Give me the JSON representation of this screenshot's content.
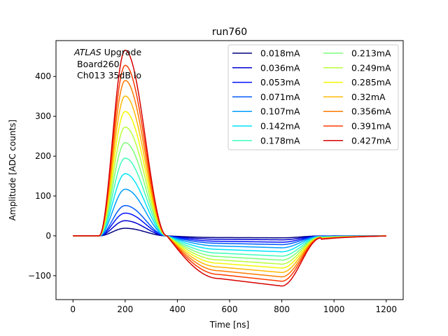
{
  "chart_data": {
    "type": "line",
    "title": "run760",
    "xlabel": "Time [ns]",
    "ylabel": "Amplitude [ADC counts]",
    "xlim": [
      -65,
      1265
    ],
    "ylim": [
      -160,
      490
    ],
    "xticks": [
      0,
      200,
      400,
      600,
      800,
      1000,
      1200
    ],
    "yticks": [
      -100,
      0,
      100,
      200,
      300,
      400
    ],
    "xtick_labels": [
      "0",
      "200",
      "400",
      "600",
      "800",
      "1000",
      "1200"
    ],
    "ytick_labels": [
      "−100",
      "0",
      "100",
      "200",
      "300",
      "400"
    ],
    "annotation": {
      "line1_italic": "ATLAS",
      "line1_rest": " Upgrade",
      "line2": "Board260",
      "line3": "Ch013 35dB lo"
    },
    "legend_placement": "top-right",
    "legend_columns": 2,
    "grid": false,
    "waveform": {
      "peak_time_ns": 200,
      "zero_cross_ns": 360,
      "undershoot_end_ns": 800,
      "end_ns": 1200
    },
    "series": [
      {
        "name": "0.018mA",
        "color": "#00007f",
        "peak": 19,
        "undershoot": -5
      },
      {
        "name": "0.036mA",
        "color": "#0000d0",
        "peak": 38,
        "undershoot": -10
      },
      {
        "name": "0.053mA",
        "color": "#0010ff",
        "peak": 57,
        "undershoot": -16
      },
      {
        "name": "0.071mA",
        "color": "#0058ff",
        "peak": 76,
        "undershoot": -22
      },
      {
        "name": "0.107mA",
        "color": "#009cff",
        "peak": 117,
        "undershoot": -30
      },
      {
        "name": "0.142mA",
        "color": "#00e4f8",
        "peak": 156,
        "undershoot": -40
      },
      {
        "name": "0.178mA",
        "color": "#3effb8",
        "peak": 195,
        "undershoot": -51
      },
      {
        "name": "0.213mA",
        "color": "#7cff79",
        "peak": 234,
        "undershoot": -61
      },
      {
        "name": "0.249mA",
        "color": "#b9ff3c",
        "peak": 273,
        "undershoot": -71
      },
      {
        "name": "0.285mA",
        "color": "#f4f802",
        "peak": 312,
        "undershoot": -81
      },
      {
        "name": "0.32mA",
        "color": "#ffb900",
        "peak": 351,
        "undershoot": -92
      },
      {
        "name": "0.356mA",
        "color": "#ff7a00",
        "peak": 390,
        "undershoot": -103
      },
      {
        "name": "0.391mA",
        "color": "#ff3b00",
        "peak": 428,
        "undershoot": -114
      },
      {
        "name": "0.427mA",
        "color": "#d60000",
        "peak": 466,
        "undershoot": -126
      }
    ]
  }
}
